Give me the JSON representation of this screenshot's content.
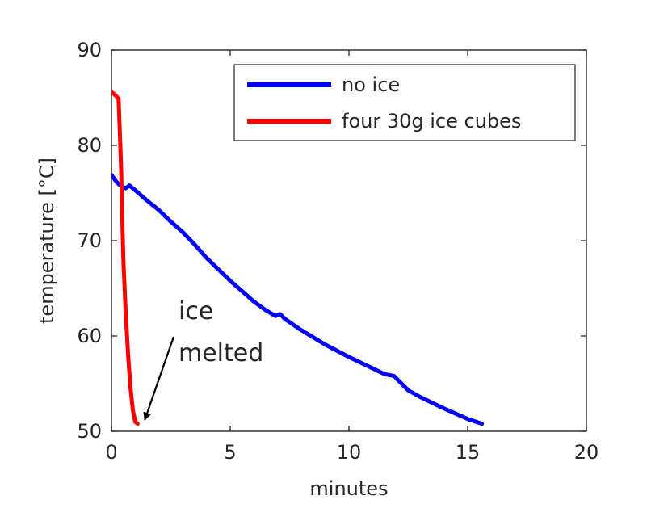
{
  "chart_data": {
    "type": "line",
    "title": "",
    "xlabel": "minutes",
    "ylabel": "temperature [°C]",
    "xlim": [
      0,
      20
    ],
    "ylim": [
      50,
      90
    ],
    "xticks": [
      0,
      5,
      10,
      15,
      20
    ],
    "yticks": [
      50,
      60,
      70,
      80,
      90
    ],
    "grid": false,
    "legend_position": "top-right",
    "series": [
      {
        "name": "no ice",
        "color": "#0000ff",
        "x": [
          0,
          0.2,
          0.4,
          0.6,
          0.75,
          1.0,
          1.5,
          2.0,
          2.5,
          3.0,
          3.5,
          4.0,
          4.5,
          5.0,
          5.5,
          6.0,
          6.5,
          6.9,
          7.1,
          7.3,
          8.0,
          9.0,
          10.0,
          11.0,
          11.5,
          11.9,
          12.1,
          12.5,
          13.0,
          14.0,
          15.0,
          15.6
        ],
        "y": [
          76.9,
          76.2,
          75.7,
          75.5,
          75.8,
          75.3,
          74.2,
          73.2,
          72.0,
          70.9,
          69.6,
          68.2,
          67.0,
          65.8,
          64.7,
          63.6,
          62.7,
          62.1,
          62.3,
          61.8,
          60.6,
          59.1,
          57.8,
          56.6,
          56.0,
          55.8,
          55.3,
          54.3,
          53.6,
          52.4,
          51.3,
          50.8
        ]
      },
      {
        "name": "four 30g ice cubes",
        "color": "#ff0000",
        "x": [
          0,
          0.15,
          0.3,
          0.4,
          0.5,
          0.6,
          0.7,
          0.8,
          0.9,
          1.0,
          1.1
        ],
        "y": [
          85.6,
          85.3,
          84.9,
          78.0,
          68.0,
          62.5,
          58.0,
          54.6,
          52.2,
          51.0,
          50.8
        ]
      }
    ],
    "annotations": [
      {
        "text_lines": [
          "ice",
          "melted"
        ],
        "arrow_to": [
          1.4,
          51.2
        ]
      }
    ]
  }
}
